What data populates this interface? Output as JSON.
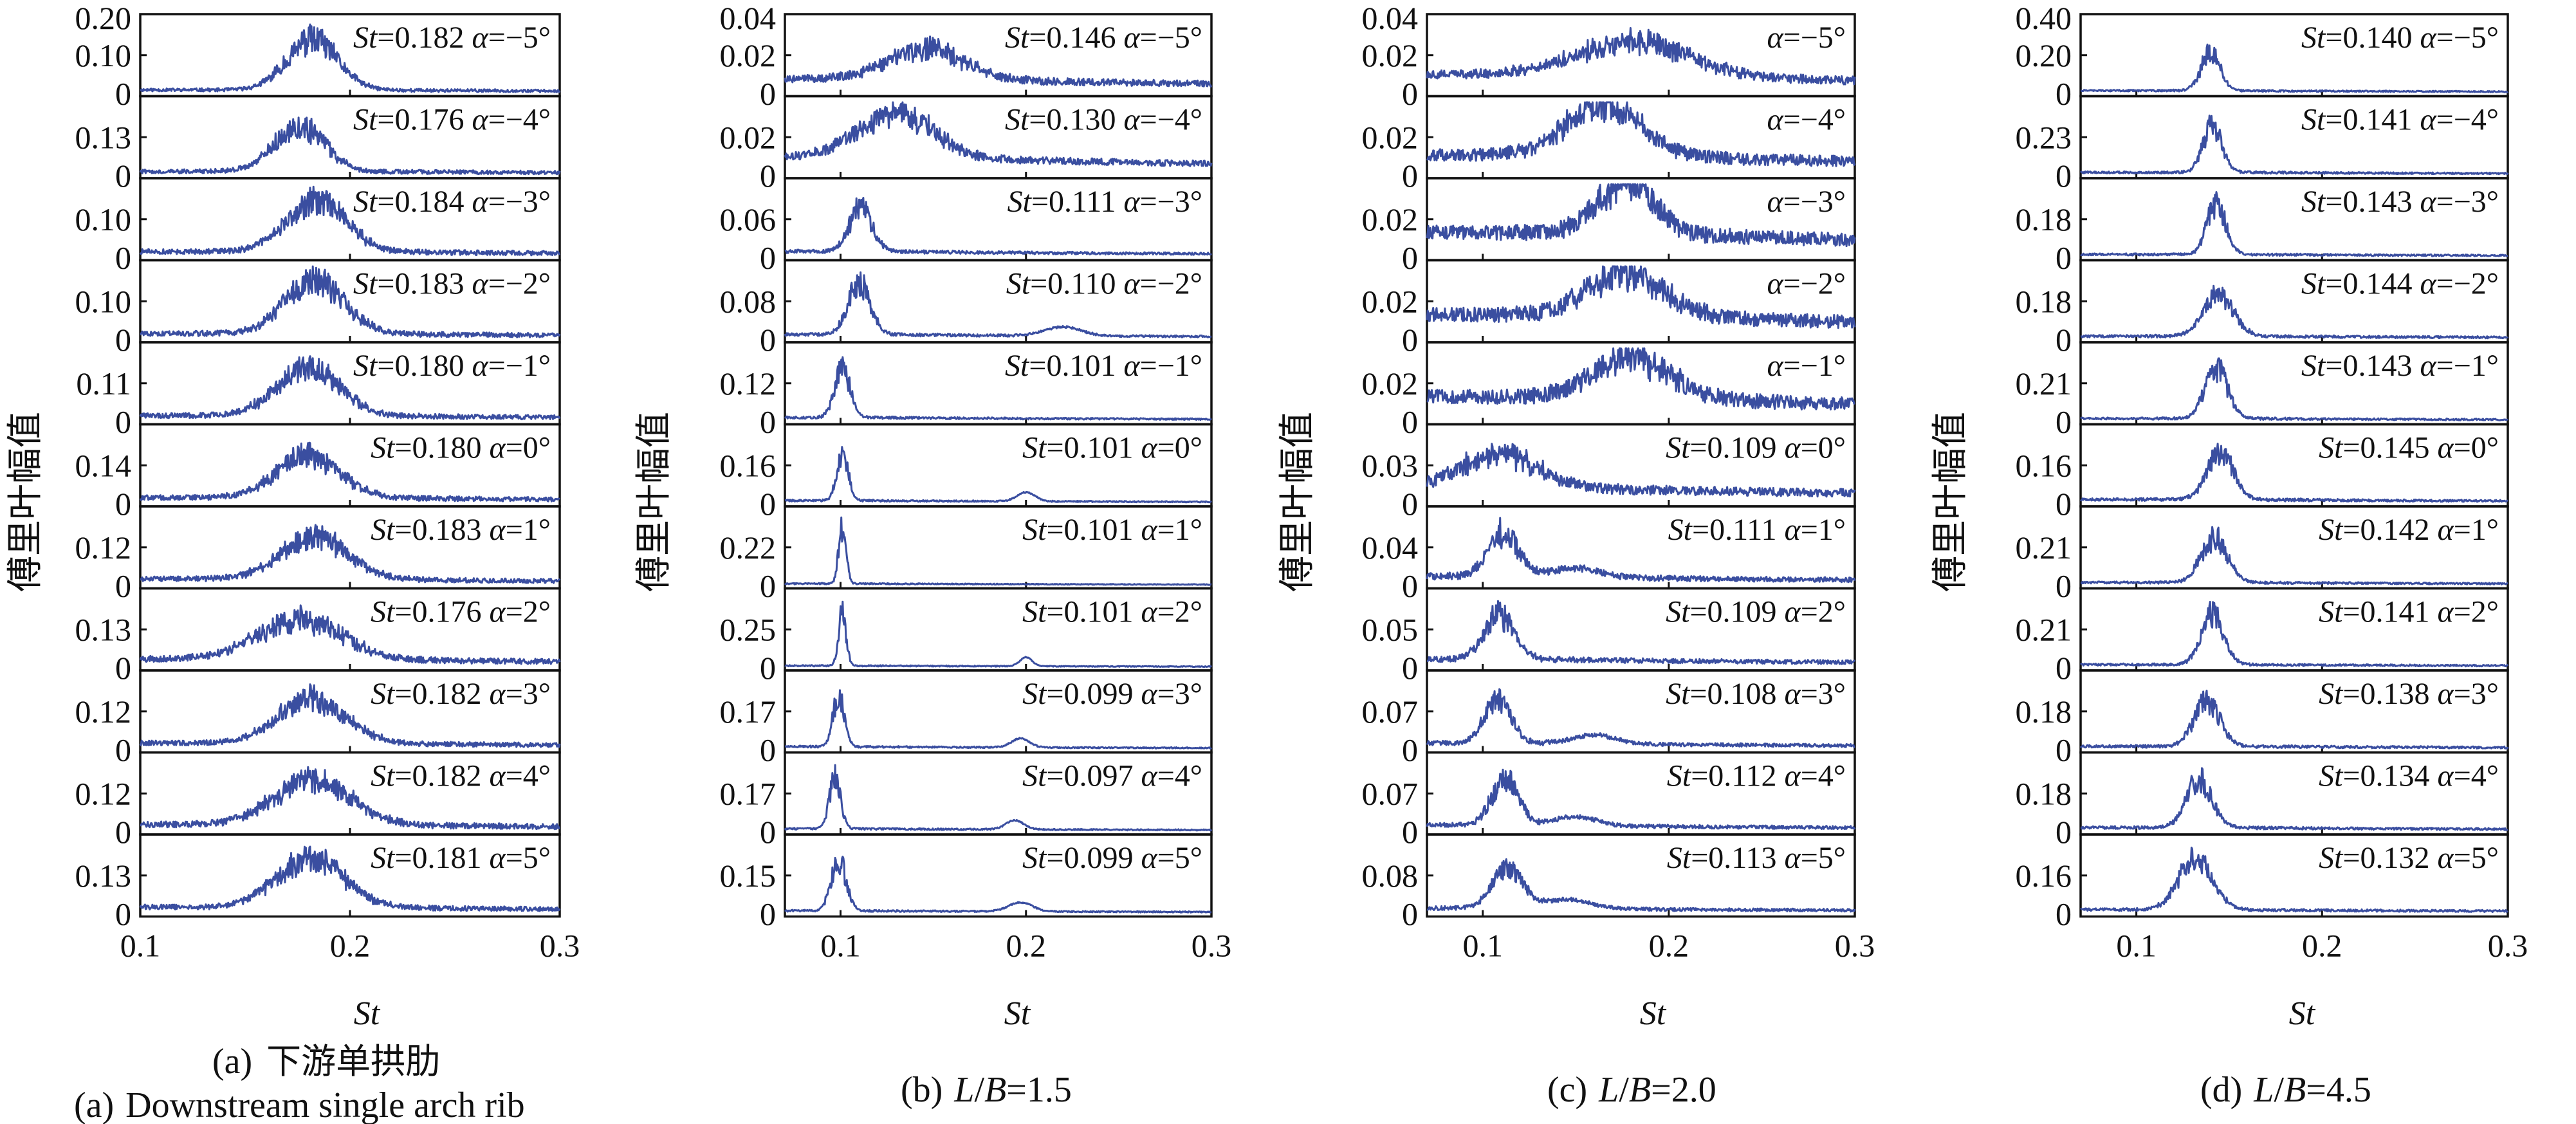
{
  "figure": {
    "line_color": "#3a4ea0",
    "y_axis_label": "傅里叶幅值",
    "x_axis_label": "St"
  },
  "chart_data": [
    {
      "type": "line",
      "caption": {
        "label": "(a)",
        "title_cn": "下游单拱肋",
        "title_en": "Downstream single arch rib"
      },
      "xlabel": "St",
      "ylabel": "傅里叶幅值",
      "xlim": [
        0.1,
        0.3
      ],
      "xticks": [
        "0.1",
        "0.2",
        "0.3"
      ],
      "panels": [
        {
          "alpha": "−5",
          "st": "0.182",
          "ymax_label": "0.20",
          "ymid_label": "0.10",
          "peak": 0.182,
          "peak_h": 0.85,
          "base": 0.03,
          "noise": 0.06,
          "width": 0.012,
          "sub": null
        },
        {
          "alpha": "−4",
          "st": "0.176",
          "ymax_label": null,
          "ymid_label": "0.13",
          "peak": 0.176,
          "peak_h": 0.75,
          "base": 0.03,
          "noise": 0.08,
          "width": 0.012,
          "sub": null
        },
        {
          "alpha": "−3",
          "st": "0.184",
          "ymax_label": null,
          "ymid_label": "0.10",
          "peak": 0.184,
          "peak_h": 0.85,
          "base": 0.05,
          "noise": 0.1,
          "width": 0.014,
          "sub": null
        },
        {
          "alpha": "−2",
          "st": "0.183",
          "ymax_label": null,
          "ymid_label": "0.10",
          "peak": 0.183,
          "peak_h": 0.9,
          "base": 0.05,
          "noise": 0.1,
          "width": 0.014,
          "sub": null
        },
        {
          "alpha": "−1",
          "st": "0.180",
          "ymax_label": null,
          "ymid_label": "0.11",
          "peak": 0.18,
          "peak_h": 0.8,
          "base": 0.05,
          "noise": 0.1,
          "width": 0.015,
          "sub": null
        },
        {
          "alpha": "0",
          "st": "0.180",
          "ymax_label": null,
          "ymid_label": "0.14",
          "peak": 0.18,
          "peak_h": 0.7,
          "base": 0.05,
          "noise": 0.1,
          "width": 0.015,
          "sub": null
        },
        {
          "alpha": "1",
          "st": "0.183",
          "ymax_label": null,
          "ymid_label": "0.12",
          "peak": 0.183,
          "peak_h": 0.7,
          "base": 0.06,
          "noise": 0.1,
          "width": 0.016,
          "sub": null
        },
        {
          "alpha": "2",
          "st": "0.176",
          "ymax_label": null,
          "ymid_label": "0.13",
          "peak": 0.176,
          "peak_h": 0.65,
          "base": 0.08,
          "noise": 0.12,
          "width": 0.02,
          "sub": null
        },
        {
          "alpha": "3",
          "st": "0.182",
          "ymax_label": null,
          "ymid_label": "0.12",
          "peak": 0.182,
          "peak_h": 0.75,
          "base": 0.06,
          "noise": 0.1,
          "width": 0.016,
          "sub": null
        },
        {
          "alpha": "4",
          "st": "0.182",
          "ymax_label": null,
          "ymid_label": "0.12",
          "peak": 0.182,
          "peak_h": 0.75,
          "base": 0.06,
          "noise": 0.12,
          "width": 0.018,
          "sub": null
        },
        {
          "alpha": "5",
          "st": "0.181",
          "ymax_label": null,
          "ymid_label": "0.13",
          "peak": 0.181,
          "peak_h": 0.8,
          "base": 0.06,
          "noise": 0.1,
          "width": 0.016,
          "sub": null
        }
      ]
    },
    {
      "type": "line",
      "caption": {
        "label": "(b)",
        "ratio": "1.5"
      },
      "xlabel": "St",
      "ylabel": "傅里叶幅值",
      "xlim": [
        0.07,
        0.3
      ],
      "xticks": [
        "0.1",
        "0.2",
        "0.3"
      ],
      "panels": [
        {
          "alpha": "−5",
          "st": "0.146",
          "ymax_label": "0.04",
          "ymid_label": "0.02",
          "peak": 0.146,
          "peak_h": 0.5,
          "base": 0.15,
          "noise": 0.15,
          "width": 0.02,
          "sub": null
        },
        {
          "alpha": "−4",
          "st": "0.130",
          "ymax_label": null,
          "ymid_label": "0.02",
          "peak": 0.13,
          "peak_h": 0.75,
          "base": 0.2,
          "noise": 0.15,
          "width": 0.02,
          "sub": null
        },
        {
          "alpha": "−3",
          "st": "0.111",
          "ymax_label": null,
          "ymid_label": "0.06",
          "peak": 0.111,
          "peak_h": 0.75,
          "base": 0.06,
          "noise": 0.06,
          "width": 0.006,
          "sub": null
        },
        {
          "alpha": "−2",
          "st": "0.110",
          "ymax_label": null,
          "ymid_label": "0.08",
          "peak": 0.11,
          "peak_h": 0.85,
          "base": 0.05,
          "noise": 0.05,
          "width": 0.006,
          "sub": 0.22
        },
        {
          "alpha": "−1",
          "st": "0.101",
          "ymax_label": null,
          "ymid_label": "0.12",
          "peak": 0.101,
          "peak_h": 0.9,
          "base": 0.04,
          "noise": 0.04,
          "width": 0.004,
          "sub": null
        },
        {
          "alpha": "0",
          "st": "0.101",
          "ymax_label": null,
          "ymid_label": "0.16",
          "peak": 0.101,
          "peak_h": 0.85,
          "base": 0.03,
          "noise": 0.03,
          "width": 0.003,
          "sub": 0.2
        },
        {
          "alpha": "1",
          "st": "0.101",
          "ymax_label": null,
          "ymid_label": "0.22",
          "peak": 0.101,
          "peak_h": 0.95,
          "base": 0.02,
          "noise": 0.02,
          "width": 0.002,
          "sub": null
        },
        {
          "alpha": "2",
          "st": "0.101",
          "ymax_label": null,
          "ymid_label": "0.25",
          "peak": 0.101,
          "peak_h": 0.9,
          "base": 0.02,
          "noise": 0.02,
          "width": 0.002,
          "sub": 0.2
        },
        {
          "alpha": "3",
          "st": "0.099",
          "ymax_label": null,
          "ymid_label": "0.17",
          "peak": 0.099,
          "peak_h": 0.85,
          "base": 0.03,
          "noise": 0.03,
          "width": 0.003,
          "sub": 0.197
        },
        {
          "alpha": "4",
          "st": "0.097",
          "ymax_label": null,
          "ymid_label": "0.17",
          "peak": 0.097,
          "peak_h": 0.85,
          "base": 0.03,
          "noise": 0.03,
          "width": 0.003,
          "sub": 0.194
        },
        {
          "alpha": "5",
          "st": "0.099",
          "ymax_label": null,
          "ymid_label": "0.15",
          "peak": 0.099,
          "peak_h": 0.85,
          "base": 0.03,
          "noise": 0.03,
          "width": 0.004,
          "sub": 0.197
        }
      ]
    },
    {
      "type": "line",
      "caption": {
        "label": "(c)",
        "ratio": "2.0"
      },
      "xlabel": "St",
      "ylabel": "傅里叶幅值",
      "xlim": [
        0.07,
        0.3
      ],
      "xticks": [
        "0.1",
        "0.2",
        "0.3"
      ],
      "panels": [
        {
          "alpha": "−5",
          "st": null,
          "ymax_label": "0.04",
          "ymid_label": "0.02",
          "peak": 0.18,
          "peak_h": 0.55,
          "base": 0.2,
          "noise": 0.2,
          "width": 0.03,
          "sub": null
        },
        {
          "alpha": "−4",
          "st": null,
          "ymax_label": null,
          "ymid_label": "0.02",
          "peak": 0.165,
          "peak_h": 0.85,
          "base": 0.2,
          "noise": 0.25,
          "width": 0.02,
          "sub": null
        },
        {
          "alpha": "−3",
          "st": null,
          "ymax_label": null,
          "ymid_label": "0.02",
          "peak": 0.177,
          "peak_h": 0.85,
          "base": 0.25,
          "noise": 0.3,
          "width": 0.015,
          "sub": null
        },
        {
          "alpha": "−2",
          "st": null,
          "ymax_label": null,
          "ymid_label": "0.02",
          "peak": 0.177,
          "peak_h": 0.7,
          "base": 0.25,
          "noise": 0.3,
          "width": 0.02,
          "sub": null
        },
        {
          "alpha": "−1",
          "st": null,
          "ymax_label": null,
          "ymid_label": "0.02",
          "peak": 0.18,
          "peak_h": 0.65,
          "base": 0.25,
          "noise": 0.3,
          "width": 0.02,
          "sub": null
        },
        {
          "alpha": "0",
          "st": "0.109",
          "ymax_label": null,
          "ymid_label": "0.03",
          "peak": 0.109,
          "peak_h": 0.55,
          "base": 0.15,
          "noise": 0.2,
          "width": 0.02,
          "sub": null
        },
        {
          "alpha": "1",
          "st": "0.111",
          "ymax_label": null,
          "ymid_label": "0.04",
          "peak": 0.111,
          "peak_h": 0.75,
          "base": 0.08,
          "noise": 0.12,
          "width": 0.008,
          "sub": 0.15
        },
        {
          "alpha": "2",
          "st": "0.109",
          "ymax_label": null,
          "ymid_label": "0.05",
          "peak": 0.109,
          "peak_h": 0.75,
          "base": 0.08,
          "noise": 0.1,
          "width": 0.008,
          "sub": null
        },
        {
          "alpha": "3",
          "st": "0.108",
          "ymax_label": null,
          "ymid_label": "0.07",
          "peak": 0.108,
          "peak_h": 0.75,
          "base": 0.06,
          "noise": 0.08,
          "width": 0.007,
          "sub": 0.16
        },
        {
          "alpha": "4",
          "st": "0.112",
          "ymax_label": null,
          "ymid_label": "0.07",
          "peak": 0.112,
          "peak_h": 0.8,
          "base": 0.06,
          "noise": 0.08,
          "width": 0.007,
          "sub": 0.15
        },
        {
          "alpha": "5",
          "st": "0.113",
          "ymax_label": null,
          "ymid_label": "0.08",
          "peak": 0.113,
          "peak_h": 0.7,
          "base": 0.05,
          "noise": 0.07,
          "width": 0.008,
          "sub": 0.145
        }
      ]
    },
    {
      "type": "line",
      "caption": {
        "label": "(d)",
        "ratio": "4.5"
      },
      "xlabel": "St",
      "ylabel": "傅里叶幅值",
      "xlim": [
        0.07,
        0.3
      ],
      "xticks": [
        "0.1",
        "0.2",
        "0.3"
      ],
      "panels": [
        {
          "alpha": "−5",
          "st": "0.140",
          "ymax_label": "0.40",
          "ymid_label": "0.20",
          "peak": 0.14,
          "peak_h": 0.65,
          "base": 0.03,
          "noise": 0.03,
          "width": 0.005,
          "sub": null
        },
        {
          "alpha": "−4",
          "st": "0.141",
          "ymax_label": null,
          "ymid_label": "0.23",
          "peak": 0.141,
          "peak_h": 0.8,
          "base": 0.03,
          "noise": 0.04,
          "width": 0.005,
          "sub": null
        },
        {
          "alpha": "−3",
          "st": "0.143",
          "ymax_label": null,
          "ymid_label": "0.18",
          "peak": 0.143,
          "peak_h": 0.85,
          "base": 0.03,
          "noise": 0.04,
          "width": 0.005,
          "sub": null
        },
        {
          "alpha": "−2",
          "st": "0.144",
          "ymax_label": null,
          "ymid_label": "0.18",
          "peak": 0.144,
          "peak_h": 0.7,
          "base": 0.03,
          "noise": 0.05,
          "width": 0.008,
          "sub": null
        },
        {
          "alpha": "−1",
          "st": "0.143",
          "ymax_label": null,
          "ymid_label": "0.21",
          "peak": 0.143,
          "peak_h": 0.85,
          "base": 0.03,
          "noise": 0.04,
          "width": 0.006,
          "sub": null
        },
        {
          "alpha": "0",
          "st": "0.145",
          "ymax_label": null,
          "ymid_label": "0.16",
          "peak": 0.145,
          "peak_h": 0.8,
          "base": 0.04,
          "noise": 0.05,
          "width": 0.007,
          "sub": null
        },
        {
          "alpha": "1",
          "st": "0.142",
          "ymax_label": null,
          "ymid_label": "0.21",
          "peak": 0.142,
          "peak_h": 0.75,
          "base": 0.03,
          "noise": 0.04,
          "width": 0.007,
          "sub": null
        },
        {
          "alpha": "2",
          "st": "0.141",
          "ymax_label": null,
          "ymid_label": "0.21",
          "peak": 0.141,
          "peak_h": 0.85,
          "base": 0.03,
          "noise": 0.04,
          "width": 0.006,
          "sub": null
        },
        {
          "alpha": "3",
          "st": "0.138",
          "ymax_label": null,
          "ymid_label": "0.18",
          "peak": 0.138,
          "peak_h": 0.75,
          "base": 0.03,
          "noise": 0.05,
          "width": 0.007,
          "sub": null
        },
        {
          "alpha": "4",
          "st": "0.134",
          "ymax_label": null,
          "ymid_label": "0.18",
          "peak": 0.134,
          "peak_h": 0.8,
          "base": 0.04,
          "noise": 0.05,
          "width": 0.007,
          "sub": null
        },
        {
          "alpha": "5",
          "st": "0.132",
          "ymax_label": null,
          "ymid_label": "0.16",
          "peak": 0.132,
          "peak_h": 0.85,
          "base": 0.04,
          "noise": 0.05,
          "width": 0.009,
          "sub": null
        }
      ]
    }
  ]
}
